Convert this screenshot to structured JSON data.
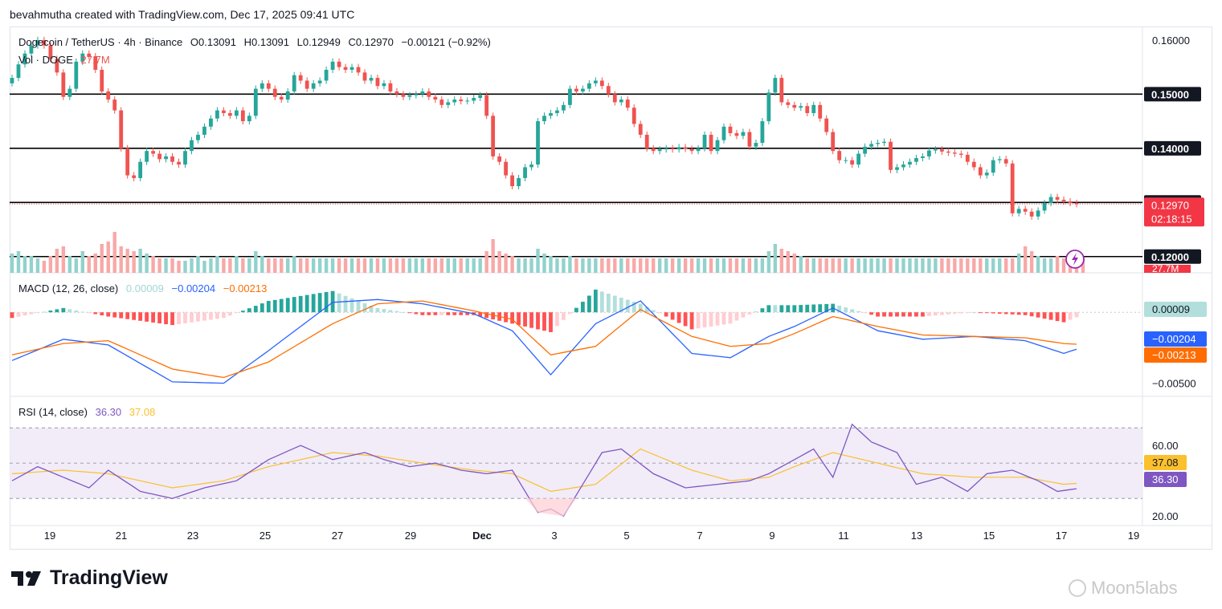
{
  "header": {
    "text": "bevahmutha created with TradingView.com, Dec 17, 2025 09:41 UTC"
  },
  "legend": {
    "symbol": "Dogecoin / TetherUS · 4h · Binance",
    "open": "O0.13091",
    "high": "H0.13091",
    "low": "L0.12949",
    "close": "C0.12970",
    "change": "−0.00121 (−0.92%)",
    "vol_label": "Vol · DOGE",
    "vol_value": "27.7M",
    "macd_label": "MACD (12, 26, close)",
    "macd_hist": "0.00009",
    "macd_line": "−0.00204",
    "macd_signal": "−0.00213",
    "rsi_label": "RSI (14, close)",
    "rsi_value": "36.30",
    "rsi_ma": "37.08"
  },
  "colors": {
    "up": "#26a69a",
    "down": "#ef5350",
    "macd": "#2962ff",
    "signal": "#ff6d00",
    "rsi": "#7e57c2",
    "rsi_ma": "#fbc02d"
  },
  "price_axis": {
    "labels": [
      "0.16000",
      "0.15000",
      "0.14000",
      "0.13000",
      "0.12000"
    ],
    "current_price": "0.12970",
    "countdown": "02:18:15",
    "vol_tag": "27.7M"
  },
  "macd_axis": {
    "labels": [
      "0.00009",
      "−0.00204",
      "−0.00213",
      "−0.00500"
    ]
  },
  "rsi_axis": {
    "labels": [
      "60.00",
      "37.08",
      "36.30",
      "20.00"
    ]
  },
  "time_axis": {
    "labels": [
      "19",
      "21",
      "23",
      "25",
      "27",
      "29",
      "Dec",
      "3",
      "5",
      "7",
      "9",
      "11",
      "13",
      "15",
      "17",
      "19"
    ]
  },
  "branding": {
    "logo": "TradingView",
    "watermark": "Moon5labs"
  },
  "chart_data": [
    {
      "type": "candlestick",
      "title": "Dogecoin / TetherUS · 4h · Binance",
      "ylim": [
        0.117,
        0.1625
      ],
      "horizontal_levels": [
        0.15,
        0.14,
        0.13,
        0.12
      ],
      "close": [
        0.153,
        0.1555,
        0.1575,
        0.159,
        0.16,
        0.159,
        0.1565,
        0.154,
        0.1495,
        0.151,
        0.156,
        0.1575,
        0.157,
        0.1545,
        0.1505,
        0.149,
        0.147,
        0.14,
        0.135,
        0.1345,
        0.1375,
        0.1395,
        0.139,
        0.138,
        0.1385,
        0.1375,
        0.137,
        0.1395,
        0.1415,
        0.1425,
        0.144,
        0.1455,
        0.147,
        0.1465,
        0.146,
        0.147,
        0.145,
        0.146,
        0.151,
        0.152,
        0.151,
        0.1495,
        0.149,
        0.1505,
        0.1535,
        0.1525,
        0.151,
        0.152,
        0.1525,
        0.1545,
        0.156,
        0.155,
        0.1545,
        0.155,
        0.154,
        0.1525,
        0.153,
        0.1515,
        0.152,
        0.1505,
        0.15,
        0.1495,
        0.1498,
        0.15,
        0.1505,
        0.1495,
        0.149,
        0.148,
        0.1485,
        0.149,
        0.1487,
        0.1488,
        0.1493,
        0.1498,
        0.146,
        0.1385,
        0.1375,
        0.135,
        0.133,
        0.1345,
        0.1365,
        0.137,
        0.145,
        0.146,
        0.1465,
        0.147,
        0.148,
        0.151,
        0.1505,
        0.151,
        0.152,
        0.1525,
        0.1515,
        0.15,
        0.1485,
        0.149,
        0.1475,
        0.1445,
        0.1425,
        0.14,
        0.1395,
        0.1398,
        0.14,
        0.1398,
        0.1402,
        0.1399,
        0.1395,
        0.14,
        0.1425,
        0.1395,
        0.1415,
        0.144,
        0.1428,
        0.1423,
        0.143,
        0.1403,
        0.141,
        0.145,
        0.1503,
        0.153,
        0.1485,
        0.148,
        0.1475,
        0.1478,
        0.1465,
        0.148,
        0.1455,
        0.143,
        0.1395,
        0.1378,
        0.1378,
        0.137,
        0.139,
        0.1403,
        0.1408,
        0.141,
        0.1412,
        0.136,
        0.1365,
        0.137,
        0.1375,
        0.1382,
        0.1385,
        0.1396,
        0.1398,
        0.1394,
        0.1392,
        0.139,
        0.1388,
        0.1375,
        0.1365,
        0.135,
        0.1355,
        0.1378,
        0.138,
        0.1372,
        0.128,
        0.1288,
        0.1283,
        0.1274,
        0.1285,
        0.1299,
        0.131,
        0.1305,
        0.1302,
        0.1299,
        0.1297
      ],
      "volume_relative": [
        0.4,
        0.45,
        0.35,
        0.35,
        0.3,
        0.25,
        0.35,
        0.5,
        0.55,
        0.35,
        0.3,
        0.45,
        0.35,
        0.4,
        0.6,
        0.65,
        0.85,
        0.55,
        0.5,
        0.45,
        0.5,
        0.4,
        0.35,
        0.3,
        0.3,
        0.3,
        0.25,
        0.25,
        0.3,
        0.35,
        0.25,
        0.3,
        0.35,
        0.3,
        0.3,
        0.35,
        0.3,
        0.3,
        0.45,
        0.35,
        0.3,
        0.3,
        0.3,
        0.3,
        0.35,
        0.3,
        0.3,
        0.3,
        0.3,
        0.3,
        0.3,
        0.3,
        0.3,
        0.3,
        0.3,
        0.3,
        0.3,
        0.3,
        0.3,
        0.3,
        0.3,
        0.3,
        0.3,
        0.3,
        0.3,
        0.3,
        0.3,
        0.3,
        0.3,
        0.3,
        0.3,
        0.3,
        0.3,
        0.3,
        0.45,
        0.7,
        0.45,
        0.4,
        0.35,
        0.3,
        0.3,
        0.3,
        0.5,
        0.4,
        0.35,
        0.3,
        0.3,
        0.35,
        0.3,
        0.3,
        0.3,
        0.3,
        0.3,
        0.3,
        0.3,
        0.3,
        0.3,
        0.3,
        0.3,
        0.3,
        0.3,
        0.3,
        0.3,
        0.3,
        0.3,
        0.3,
        0.3,
        0.3,
        0.3,
        0.3,
        0.3,
        0.3,
        0.3,
        0.3,
        0.3,
        0.3,
        0.3,
        0.3,
        0.45,
        0.6,
        0.5,
        0.45,
        0.4,
        0.35,
        0.3,
        0.3,
        0.3,
        0.3,
        0.3,
        0.3,
        0.3,
        0.3,
        0.3,
        0.3,
        0.3,
        0.3,
        0.3,
        0.3,
        0.3,
        0.3,
        0.3,
        0.3,
        0.3,
        0.3,
        0.3,
        0.3,
        0.3,
        0.3,
        0.3,
        0.3,
        0.3,
        0.3,
        0.3,
        0.3,
        0.3,
        0.3,
        0.3,
        0.4,
        0.55,
        0.45,
        0.35,
        0.3,
        0.3,
        0.35,
        0.3,
        0.3,
        0.3,
        0.3
      ]
    },
    {
      "type": "line",
      "title": "MACD (12, 26, close)",
      "ylim": [
        -0.0057,
        0.0025
      ],
      "series": [
        {
          "name": "MACD",
          "x_index": [
            0,
            8,
            15,
            25,
            33,
            40,
            50,
            57,
            64,
            72,
            78,
            84,
            91,
            98,
            106,
            112,
            118,
            122,
            128,
            135,
            142,
            150,
            158,
            164,
            168,
            174
          ],
          "values": [
            -0.0034,
            -0.0019,
            -0.0023,
            -0.0049,
            -0.005,
            -0.0027,
            0.0007,
            0.0009,
            0.0006,
            -0.0001,
            -0.0013,
            -0.0044,
            -0.0008,
            0.0008,
            -0.0029,
            -0.0032,
            -0.0017,
            -0.001,
            0.0003,
            -0.0013,
            -0.0019,
            -0.0017,
            -0.002,
            -0.0029,
            -0.0023,
            -0.002
          ]
        },
        {
          "name": "Signal",
          "x_index": [
            0,
            8,
            15,
            25,
            33,
            40,
            50,
            57,
            64,
            72,
            78,
            84,
            91,
            98,
            106,
            112,
            118,
            122,
            128,
            135,
            142,
            150,
            158,
            164,
            168,
            174
          ],
          "values": [
            -0.003,
            -0.0022,
            -0.002,
            -0.004,
            -0.0046,
            -0.0035,
            -0.0008,
            0.0006,
            0.0008,
            0.0001,
            -0.0005,
            -0.003,
            -0.0024,
            0.0002,
            -0.0017,
            -0.0024,
            -0.0022,
            -0.0015,
            -0.0003,
            -0.001,
            -0.0016,
            -0.0017,
            -0.0018,
            -0.0022,
            -0.0023,
            -0.0021
          ]
        }
      ],
      "histogram_last": 9e-05
    },
    {
      "type": "line",
      "title": "RSI (14, close)",
      "ylim": [
        16,
        86
      ],
      "bands": [
        30,
        50,
        70
      ],
      "series": [
        {
          "name": "RSI",
          "x_index": [
            0,
            4,
            8,
            12,
            15,
            20,
            25,
            30,
            35,
            40,
            45,
            50,
            55,
            58,
            62,
            66,
            70,
            74,
            78,
            82,
            84,
            86,
            90,
            92,
            95,
            100,
            105,
            110,
            115,
            118,
            122,
            125,
            128,
            131,
            134,
            138,
            141,
            145,
            149,
            152,
            156,
            160,
            163,
            167,
            170,
            174
          ],
          "values": [
            40,
            48,
            42,
            36,
            46,
            34,
            30,
            36,
            40,
            52,
            60,
            52,
            56,
            52,
            48,
            50,
            46,
            44,
            46,
            22,
            24,
            20,
            44,
            56,
            58,
            44,
            36,
            38,
            40,
            44,
            52,
            58,
            42,
            72,
            62,
            56,
            38,
            42,
            34,
            44,
            46,
            40,
            34,
            36,
            42,
            36.3
          ]
        },
        {
          "name": "RSI MA",
          "x_index": [
            0,
            8,
            15,
            25,
            33,
            40,
            50,
            57,
            64,
            72,
            78,
            84,
            91,
            98,
            106,
            112,
            118,
            122,
            128,
            135,
            142,
            150,
            158,
            164,
            168,
            174
          ],
          "values": [
            44,
            46,
            44,
            36,
            40,
            48,
            56,
            54,
            50,
            46,
            44,
            34,
            38,
            58,
            46,
            40,
            42,
            48,
            56,
            50,
            44,
            42,
            42,
            38,
            39,
            37.08
          ]
        }
      ]
    }
  ]
}
